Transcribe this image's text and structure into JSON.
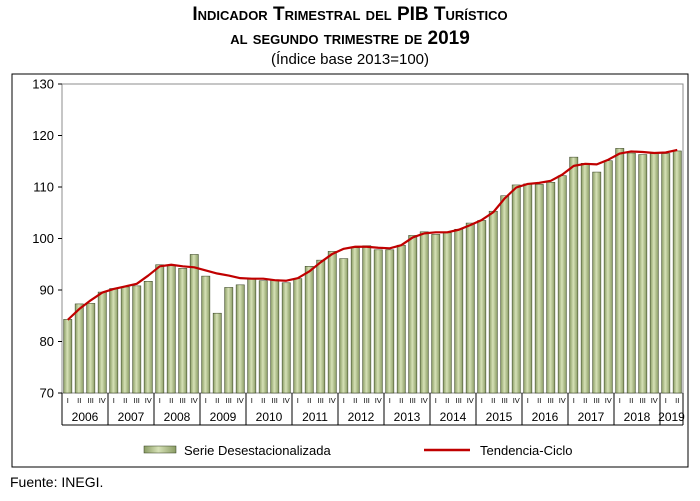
{
  "header": {
    "title_line1": "Indicador Trimestral del PIB Turístico",
    "title_line2": "al segundo trimestre de 2019",
    "subtitle": "(Índice base 2013=100)"
  },
  "footer": {
    "source": "Fuente: INEGI."
  },
  "colors": {
    "bar": "#8a9c64",
    "bar_light": "#d6e1b6",
    "bar_edge": "#2f3a1c",
    "line": "#c00000"
  },
  "chart_data": {
    "type": "bar",
    "title": "Indicador Trimestral del PIB Turístico al segundo trimestre de 2019",
    "subtitle": "(Índice base 2013=100)",
    "xlabel": "",
    "ylabel": "",
    "ylim": [
      70,
      130
    ],
    "yticks": [
      70,
      80,
      90,
      100,
      110,
      120,
      130
    ],
    "grid": false,
    "legend_position": "bottom",
    "years": [
      "2006",
      "2007",
      "2008",
      "2009",
      "2010",
      "2011",
      "2012",
      "2013",
      "2014",
      "2015",
      "2016",
      "2017",
      "2018",
      "2019"
    ],
    "quarter_labels": [
      "I",
      "II",
      "III",
      "IV"
    ],
    "categories": [
      "2006-I",
      "2006-II",
      "2006-III",
      "2006-IV",
      "2007-I",
      "2007-II",
      "2007-III",
      "2007-IV",
      "2008-I",
      "2008-II",
      "2008-III",
      "2008-IV",
      "2009-I",
      "2009-II",
      "2009-III",
      "2009-IV",
      "2010-I",
      "2010-II",
      "2010-III",
      "2010-IV",
      "2011-I",
      "2011-II",
      "2011-III",
      "2011-IV",
      "2012-I",
      "2012-II",
      "2012-III",
      "2012-IV",
      "2013-I",
      "2013-II",
      "2013-III",
      "2013-IV",
      "2014-I",
      "2014-II",
      "2014-III",
      "2014-IV",
      "2015-I",
      "2015-II",
      "2015-III",
      "2015-IV",
      "2016-I",
      "2016-II",
      "2016-III",
      "2016-IV",
      "2017-I",
      "2017-II",
      "2017-III",
      "2017-IV",
      "2018-I",
      "2018-II",
      "2018-III",
      "2018-IV",
      "2019-I",
      "2019-II"
    ],
    "series": [
      {
        "name": "Serie Desestacionalizada",
        "kind": "bar",
        "values": [
          84.3,
          87.3,
          87.4,
          89.6,
          90.3,
          90.6,
          90.8,
          91.7,
          94.9,
          94.7,
          94.2,
          96.9,
          92.7,
          85.5,
          90.5,
          91.0,
          92.2,
          91.8,
          92.0,
          91.4,
          92.2,
          94.6,
          95.8,
          97.5,
          96.1,
          98.2,
          98.6,
          97.8,
          97.8,
          98.7,
          100.6,
          101.3,
          100.8,
          101.1,
          101.8,
          103.0,
          103.5,
          105.3,
          108.3,
          110.4,
          110.6,
          110.5,
          110.9,
          112.2,
          115.8,
          114.6,
          112.9,
          115.1,
          117.5,
          116.6,
          116.3,
          116.5,
          116.5,
          117.0
        ]
      },
      {
        "name": "Tendencia-Ciclo",
        "kind": "line",
        "values": [
          84.2,
          86.3,
          88.0,
          89.5,
          90.2,
          90.7,
          91.2,
          92.8,
          94.6,
          94.9,
          94.6,
          94.4,
          93.8,
          93.2,
          92.8,
          92.3,
          92.2,
          92.2,
          91.9,
          91.8,
          92.3,
          93.6,
          95.4,
          97.0,
          98.0,
          98.4,
          98.4,
          98.2,
          98.1,
          98.7,
          100.2,
          101.0,
          101.2,
          101.2,
          101.7,
          102.6,
          103.6,
          105.1,
          107.8,
          109.9,
          110.6,
          110.8,
          111.2,
          112.4,
          114.1,
          114.5,
          114.4,
          115.3,
          116.5,
          116.9,
          116.8,
          116.6,
          116.7,
          117.2
        ]
      }
    ]
  }
}
